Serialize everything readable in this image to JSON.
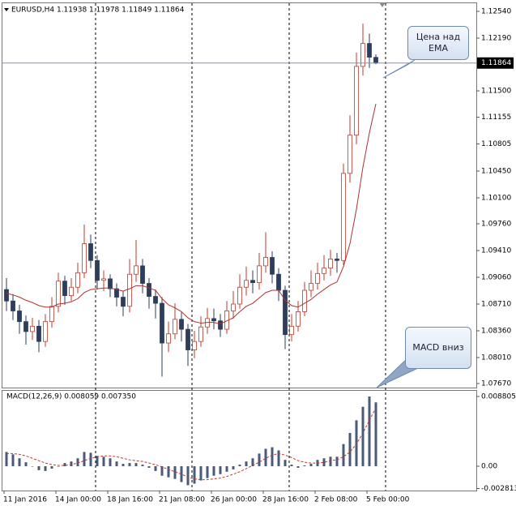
{
  "chart_data": [
    {
      "type": "candlestick",
      "title": "EURUSD,H4  1.11938 1.11978 1.11849 1.11864",
      "categories": [
        "11 Jan 2016",
        null,
        null,
        null,
        null,
        null,
        null,
        null,
        "14 Jan 00:00",
        null,
        null,
        null,
        null,
        null,
        null,
        null,
        "18 Jan 16:00",
        null,
        null,
        null,
        null,
        null,
        null,
        null,
        "21 Jan 08:00",
        null,
        null,
        null,
        null,
        null,
        null,
        null,
        "26 Jan 00:00",
        null,
        null,
        null,
        null,
        null,
        null,
        null,
        "28 Jan 16:00",
        null,
        null,
        null,
        null,
        null,
        null,
        null,
        "2 Feb 08:00",
        null,
        null,
        null,
        null,
        null,
        null,
        null,
        "5 Feb 00:00",
        null
      ],
      "open": [
        1.089,
        1.0875,
        1.0862,
        1.0848,
        1.0835,
        1.0842,
        1.0822,
        1.0848,
        1.0868,
        1.0901,
        1.0882,
        1.0893,
        1.0912,
        1.095,
        1.0928,
        1.0902,
        1.0904,
        1.0891,
        1.088,
        1.0868,
        1.091,
        1.0921,
        1.0898,
        1.0881,
        1.0872,
        1.082,
        1.0832,
        1.0851,
        1.0838,
        1.0811,
        1.0822,
        1.0841,
        1.0852,
        1.0849,
        1.0838,
        1.0862,
        1.0871,
        1.0893,
        1.0902,
        1.0899,
        1.0921,
        1.0932,
        1.091,
        1.0889,
        1.0831,
        1.0842,
        1.0861,
        1.0889,
        1.0898,
        1.0911,
        1.0918,
        1.093,
        1.0928,
        1.1042,
        1.1092,
        1.1182,
        1.1212,
        1.11938
      ],
      "high": [
        1.0905,
        1.0884,
        1.087,
        1.0856,
        1.0853,
        1.085,
        1.0858,
        1.088,
        1.0912,
        1.0908,
        1.0905,
        1.0925,
        1.0975,
        1.0962,
        1.0935,
        1.0915,
        1.091,
        1.0898,
        1.0888,
        1.093,
        1.0955,
        1.093,
        1.0905,
        1.089,
        1.088,
        1.0848,
        1.0872,
        1.086,
        1.0845,
        1.0836,
        1.0855,
        1.0866,
        1.0865,
        1.0858,
        1.0875,
        1.0888,
        1.091,
        1.092,
        1.0915,
        1.0938,
        1.0965,
        1.094,
        1.0918,
        1.0895,
        1.0858,
        1.0875,
        1.09,
        1.0915,
        1.0925,
        1.0935,
        1.0942,
        1.0938,
        1.1055,
        1.1118,
        1.12,
        1.1238,
        1.1225,
        1.11978
      ],
      "low": [
        1.0862,
        1.085,
        1.0832,
        1.0818,
        1.0824,
        1.0808,
        1.0815,
        1.084,
        1.086,
        1.087,
        1.0875,
        1.0885,
        1.0905,
        1.0918,
        1.089,
        1.0888,
        1.088,
        1.0868,
        1.0855,
        1.086,
        1.09,
        1.0885,
        1.0865,
        1.0852,
        1.0776,
        1.0808,
        1.0825,
        1.0822,
        1.079,
        1.08,
        1.0815,
        1.0832,
        1.0838,
        1.0828,
        1.0832,
        1.0852,
        1.0865,
        1.0882,
        1.0885,
        1.089,
        1.0912,
        1.0898,
        1.0875,
        1.0812,
        1.0822,
        1.0835,
        1.0855,
        1.088,
        1.089,
        1.0902,
        1.0908,
        1.0912,
        1.0922,
        1.103,
        1.108,
        1.117,
        1.118,
        1.11849
      ],
      "close": [
        1.0875,
        1.0862,
        1.0848,
        1.0835,
        1.0842,
        1.0822,
        1.0848,
        1.0868,
        1.0901,
        1.0882,
        1.0893,
        1.0912,
        1.095,
        1.0928,
        1.0902,
        1.0904,
        1.0891,
        1.088,
        1.0868,
        1.091,
        1.0921,
        1.0898,
        1.0881,
        1.0872,
        1.082,
        1.0832,
        1.0851,
        1.0838,
        1.0811,
        1.0822,
        1.0841,
        1.0852,
        1.0849,
        1.0838,
        1.0862,
        1.0871,
        1.0893,
        1.0902,
        1.0899,
        1.0921,
        1.0932,
        1.091,
        1.0889,
        1.0831,
        1.0842,
        1.0861,
        1.0889,
        1.0898,
        1.0911,
        1.0918,
        1.093,
        1.0928,
        1.1042,
        1.1092,
        1.1182,
        1.1212,
        1.1194,
        1.11864
      ],
      "up_color": "#ffffff",
      "border_color": "#c0392b",
      "down_color": "#2e3d5c",
      "series": [
        {
          "color": "#b03030",
          "values": [
            1.0885,
            1.0883,
            1.088,
            1.0876,
            1.0873,
            1.0869,
            1.0867,
            1.0867,
            1.0871,
            1.0872,
            1.0874,
            1.0878,
            1.0886,
            1.089,
            1.0891,
            1.0892,
            1.0892,
            1.089,
            1.0888,
            1.0891,
            1.0895,
            1.0895,
            1.0892,
            1.0889,
            1.0878,
            1.087,
            1.0866,
            1.0861,
            1.0853,
            1.0848,
            1.0846,
            1.0847,
            1.0847,
            1.0845,
            1.0849,
            1.0853,
            1.0861,
            1.0868,
            1.0872,
            1.0879,
            1.0886,
            1.0889,
            1.0889,
            1.0876,
            1.0869,
            1.0867,
            1.0872,
            1.0877,
            1.0884,
            1.089,
            1.0896,
            1.09,
            1.092,
            1.095,
            1.0995,
            1.105,
            1.1095,
            1.1133
          ]
        }
      ],
      "current_price": 1.11864,
      "ylim": [
        1.07617,
        1.12657
      ],
      "yticks": [
        {
          "value": 1.1254,
          "label": "1.12540"
        },
        {
          "value": 1.1219,
          "label": "1.12190"
        },
        {
          "value": 1.115,
          "label": "1.11500"
        },
        1.11155,
        1.10805,
        {
          "value": 1.1045,
          "label": "1.10450"
        },
        {
          "value": 1.101,
          "label": "1.10100"
        },
        {
          "value": 1.0976,
          "label": "1.09760"
        },
        {
          "value": 1.0941,
          "label": "1.09410"
        },
        {
          "value": 1.0906,
          "label": "1.09060"
        },
        {
          "value": 1.0871,
          "label": "1.08710"
        },
        {
          "value": 1.0836,
          "label": "1.08360"
        },
        {
          "value": 1.0801,
          "label": "1.08010"
        },
        {
          "value": 1.0767,
          "label": "1.07670"
        }
      ],
      "annotations": [
        "Цена над EMA"
      ]
    },
    {
      "type": "bar",
      "title": "MACD(12,26,9) 0.008059 0.007350",
      "values": [
        0.0018,
        0.0015,
        0.001,
        0.0005,
        0,
        -0.0005,
        -0.0006,
        -0.0003,
        0,
        0.0004,
        0.0006,
        0.001,
        0.0018,
        0.0017,
        0.0013,
        0.0012,
        0.001,
        0.0006,
        0.0003,
        0.0004,
        0.0004,
        0.0002,
        -0.0002,
        -0.0006,
        -0.0012,
        -0.0014,
        -0.0016,
        -0.002,
        -0.0024,
        -0.0022,
        -0.0018,
        -0.0015,
        -0.0012,
        -0.001,
        -0.0007,
        -0.0004,
        0.0002,
        0.0006,
        0.001,
        0.0016,
        0.0022,
        0.0024,
        0.002,
        0.0008,
        0.0002,
        -0.0002,
        0.0001,
        0.0003,
        0.0008,
        0.001,
        0.0012,
        0.0012,
        0.0028,
        0.0042,
        0.0058,
        0.0075,
        0.0088,
        0.008059
      ],
      "color": "#4a5a78",
      "series": [
        {
          "color": "#c0392b",
          "values": [
            0.0016,
            0.0016,
            0.0015,
            0.0013,
            0.001,
            0.0007,
            0.0004,
            0.0002,
            0.0001,
            0.0001,
            0.0002,
            0.0004,
            0.0007,
            0.001,
            0.0012,
            0.0013,
            0.0013,
            0.0012,
            0.001,
            0.0008,
            0.0007,
            0.0006,
            0.0004,
            0.0002,
            -0.0001,
            -0.0004,
            -0.0007,
            -0.001,
            -0.0014,
            -0.0016,
            -0.0017,
            -0.0017,
            -0.0016,
            -0.0015,
            -0.0013,
            -0.001,
            -0.0007,
            -0.0003,
            0.0001,
            0.0005,
            0.001,
            0.0014,
            0.0016,
            0.0014,
            0.0011,
            0.0007,
            0.0005,
            0.0004,
            0.0004,
            0.0005,
            0.0007,
            0.0008,
            0.0012,
            0.0018,
            0.0028,
            0.0042,
            0.0058,
            0.00735
          ]
        }
      ],
      "ylim": [
        -0.00307,
        0.00962
      ],
      "yticks": [
        0.008805,
        {
          "value": 0,
          "label": "0.00"
        },
        -0.002813
      ],
      "annotations": [
        "MACD вниз"
      ]
    }
  ]
}
